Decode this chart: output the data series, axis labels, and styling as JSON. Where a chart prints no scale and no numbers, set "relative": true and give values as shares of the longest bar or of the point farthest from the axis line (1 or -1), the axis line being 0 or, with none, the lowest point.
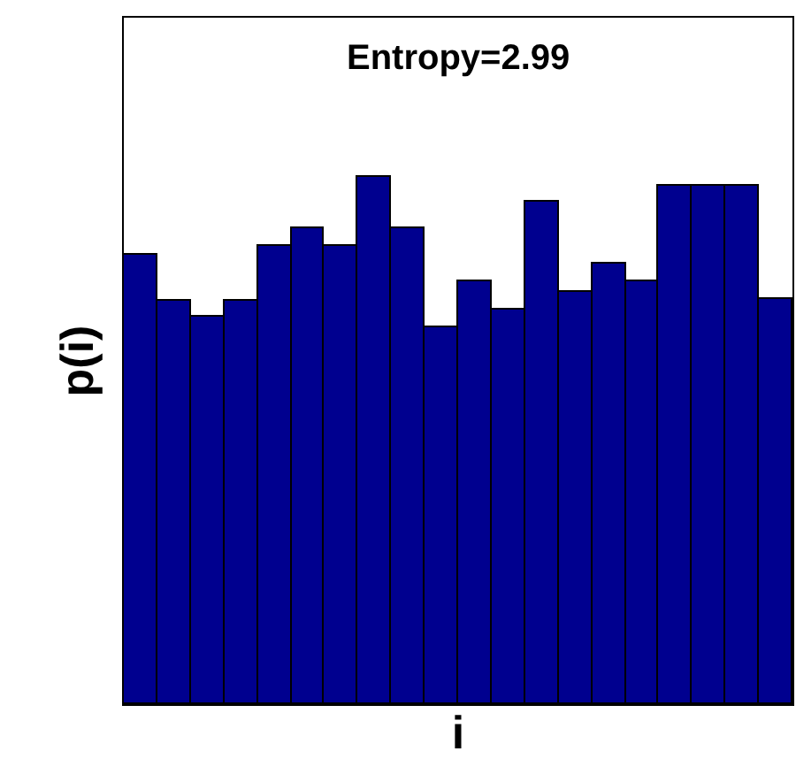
{
  "chart_data": {
    "type": "bar",
    "relative": true,
    "title": "Entropy=2.99",
    "xlabel": "i",
    "ylabel": "p(i)",
    "categories": [
      null,
      null,
      null,
      null,
      null,
      null,
      null,
      null,
      null,
      null,
      null,
      null,
      null,
      null,
      null,
      null,
      null,
      null,
      null,
      null
    ],
    "values": [
      0.85,
      0.763,
      0.733,
      0.763,
      0.867,
      0.9,
      0.867,
      1,
      0.9,
      0.713,
      0.8,
      0.747,
      0.95,
      0.78,
      0.833,
      0.8,
      0.983,
      0.983,
      0.983,
      0.767
    ],
    "color": "#00008f"
  }
}
